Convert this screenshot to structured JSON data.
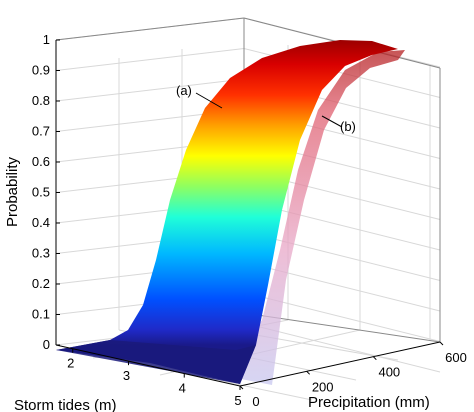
{
  "chart_data": {
    "type": "surface",
    "title": "",
    "zlabel": "Probability",
    "xlabel": "Precipitation (mm)",
    "ylabel": "Storm tides (m)",
    "z_ticks": [
      "0",
      "0.1",
      "0.2",
      "0.3",
      "0.4",
      "0.5",
      "0.6",
      "0.7",
      "0.8",
      "0.9",
      "1"
    ],
    "x_ticks": [
      "0",
      "200",
      "400",
      "600"
    ],
    "y_ticks": [
      "2",
      "3",
      "4",
      "5"
    ],
    "zlim": [
      0,
      1
    ],
    "xlim": [
      0,
      600
    ],
    "ylim": [
      1.7,
      5
    ],
    "grid": true,
    "colormap": "jet",
    "surfaces": [
      {
        "label": "(a)",
        "description": "probability rises steeply with storm tide",
        "points": [
          {
            "storm_tide": 1.7,
            "probability": 0.0
          },
          {
            "storm_tide": 2.5,
            "probability": 0.01
          },
          {
            "storm_tide": 3.0,
            "probability": 0.05
          },
          {
            "storm_tide": 3.3,
            "probability": 0.2
          },
          {
            "storm_tide": 3.6,
            "probability": 0.5
          },
          {
            "storm_tide": 3.9,
            "probability": 0.75
          },
          {
            "storm_tide": 4.3,
            "probability": 0.9
          },
          {
            "storm_tide": 5.0,
            "probability": 0.97
          }
        ]
      },
      {
        "label": "(b)",
        "description": "translucent surface offset along precipitation",
        "points": []
      }
    ]
  }
}
